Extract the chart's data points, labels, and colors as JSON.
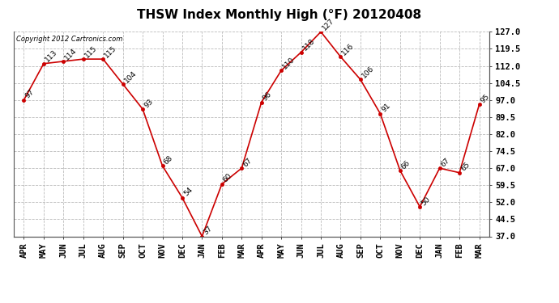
{
  "title": "THSW Index Monthly High (°F) 20120408",
  "copyright": "Copyright 2012 Cartronics.com",
  "months": [
    "APR",
    "MAY",
    "JUN",
    "JUL",
    "AUG",
    "SEP",
    "OCT",
    "NOV",
    "DEC",
    "JAN",
    "FEB",
    "MAR",
    "APR",
    "MAY",
    "JUN",
    "JUL",
    "AUG",
    "SEP",
    "OCT",
    "NOV",
    "DEC",
    "JAN",
    "FEB",
    "MAR"
  ],
  "values": [
    97,
    113,
    114,
    115,
    115,
    104,
    93,
    68,
    54,
    37,
    60,
    67,
    96,
    110,
    118,
    127,
    116,
    106,
    91,
    66,
    50,
    67,
    65,
    95
  ],
  "ylim_min": 37.0,
  "ylim_max": 127.0,
  "yticks": [
    37.0,
    44.5,
    52.0,
    59.5,
    67.0,
    74.5,
    82.0,
    89.5,
    97.0,
    104.5,
    112.0,
    119.5,
    127.0
  ],
  "line_color": "#cc0000",
  "marker_color": "#cc0000",
  "bg_color": "#ffffff",
  "plot_bg_color": "#ffffff",
  "grid_color": "#bbbbbb",
  "title_fontsize": 11,
  "tick_fontsize": 7.5,
  "annotation_fontsize": 6.5,
  "copyright_fontsize": 6
}
